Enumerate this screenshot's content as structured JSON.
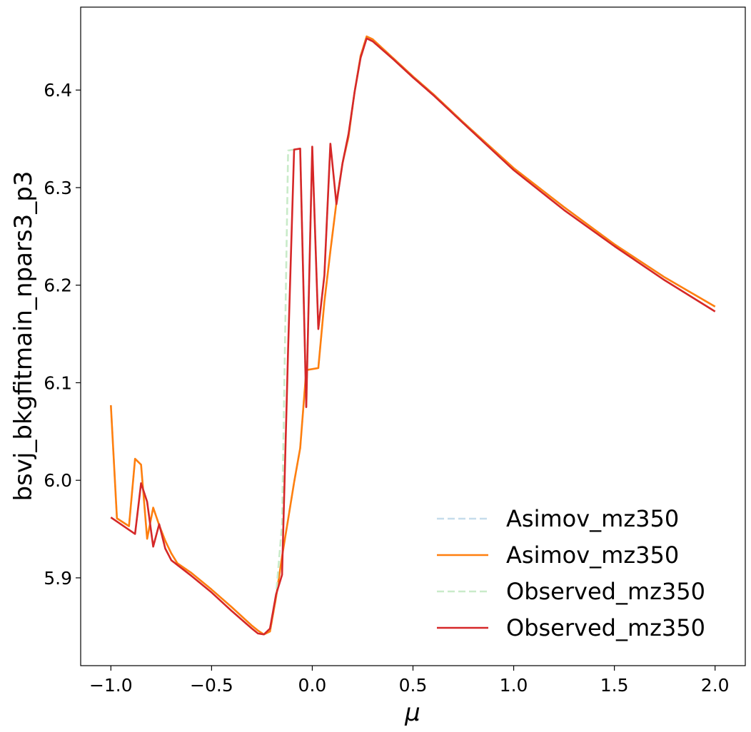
{
  "chart_data": {
    "type": "line",
    "xlabel": "μ",
    "ylabel": "bsvj_bkgfitmain_npars3_p3",
    "xlim": [
      -1.15,
      2.15
    ],
    "ylim": [
      5.81,
      6.485
    ],
    "xticks": [
      -1.0,
      -0.5,
      0.0,
      0.5,
      1.0,
      1.5,
      2.0
    ],
    "xtick_labels": [
      "−1.0",
      "−0.5",
      "0.0",
      "0.5",
      "1.0",
      "1.5",
      "2.0"
    ],
    "yticks": [
      5.9,
      6.0,
      6.1,
      6.2,
      6.3,
      6.4
    ],
    "ytick_labels": [
      "5.9",
      "6.0",
      "6.1",
      "6.2",
      "6.3",
      "6.4"
    ],
    "grid": false,
    "legend_position": "lower-right",
    "series": [
      {
        "name": "Asimov_mz350",
        "color": "#c6dcec",
        "dashed": true,
        "x": [
          -1.0,
          -0.97,
          -0.94,
          -0.91,
          -0.88,
          -0.85,
          -0.82,
          -0.79,
          -0.76,
          -0.73,
          -0.7,
          -0.67,
          -0.6,
          -0.5,
          -0.4,
          -0.3,
          -0.27,
          -0.24,
          -0.21,
          -0.18,
          -0.15,
          -0.12,
          -0.09,
          -0.06,
          -0.03,
          0.0,
          0.03,
          0.06,
          0.09,
          0.12,
          0.15,
          0.18,
          0.21,
          0.24,
          0.27,
          0.3,
          0.4,
          0.5,
          0.6,
          0.75,
          1.0,
          1.25,
          1.5,
          1.75,
          2.0
        ],
        "y": [
          6.077,
          5.961,
          5.957,
          5.953,
          6.022,
          6.016,
          5.94,
          5.972,
          5.954,
          5.938,
          5.925,
          5.915,
          5.905,
          5.888,
          5.87,
          5.851,
          5.846,
          5.842,
          5.845,
          5.88,
          5.922,
          5.96,
          5.998,
          6.033,
          6.113,
          6.114,
          6.115,
          6.183,
          6.235,
          6.285,
          6.325,
          6.352,
          6.398,
          6.435,
          6.455,
          6.452,
          6.433,
          6.414,
          6.396,
          6.367,
          6.32,
          6.28,
          6.242,
          6.208,
          6.178
        ]
      },
      {
        "name": "Asimov_mz350",
        "color": "#ff7f0e",
        "dashed": false,
        "x": [
          -1.0,
          -0.97,
          -0.94,
          -0.91,
          -0.88,
          -0.85,
          -0.82,
          -0.79,
          -0.76,
          -0.73,
          -0.7,
          -0.67,
          -0.6,
          -0.5,
          -0.4,
          -0.3,
          -0.27,
          -0.24,
          -0.21,
          -0.18,
          -0.15,
          -0.12,
          -0.09,
          -0.06,
          -0.03,
          0.0,
          0.03,
          0.06,
          0.09,
          0.12,
          0.15,
          0.18,
          0.21,
          0.24,
          0.27,
          0.3,
          0.4,
          0.5,
          0.6,
          0.75,
          1.0,
          1.25,
          1.5,
          1.75,
          2.0
        ],
        "y": [
          6.077,
          5.961,
          5.957,
          5.953,
          6.022,
          6.016,
          5.94,
          5.972,
          5.954,
          5.938,
          5.925,
          5.915,
          5.905,
          5.888,
          5.87,
          5.851,
          5.846,
          5.842,
          5.845,
          5.88,
          5.922,
          5.96,
          5.998,
          6.033,
          6.113,
          6.114,
          6.115,
          6.183,
          6.235,
          6.285,
          6.325,
          6.352,
          6.398,
          6.435,
          6.455,
          6.452,
          6.433,
          6.414,
          6.396,
          6.367,
          6.32,
          6.28,
          6.242,
          6.208,
          6.178
        ]
      },
      {
        "name": "Observed_mz350",
        "color": "#c9ebc9",
        "dashed": true,
        "x": [
          -1.0,
          -0.88,
          -0.85,
          -0.82,
          -0.79,
          -0.76,
          -0.73,
          -0.7,
          -0.6,
          -0.5,
          -0.4,
          -0.3,
          -0.27,
          -0.24,
          -0.21,
          -0.18,
          -0.15,
          -0.12,
          -0.09,
          -0.06,
          -0.03,
          0.0,
          0.03,
          0.06,
          0.09,
          0.12,
          0.15,
          0.18,
          0.21,
          0.24,
          0.27,
          0.3,
          0.4,
          0.5,
          0.6,
          0.75,
          1.0,
          1.25,
          1.5,
          1.75,
          2.0
        ],
        "y": [
          5.962,
          5.945,
          5.997,
          5.978,
          5.932,
          5.955,
          5.93,
          5.918,
          5.902,
          5.885,
          5.866,
          5.848,
          5.843,
          5.842,
          5.848,
          5.883,
          5.955,
          6.338,
          6.339,
          6.34,
          6.075,
          6.342,
          6.155,
          6.21,
          6.345,
          6.283,
          6.325,
          6.355,
          6.398,
          6.433,
          6.453,
          6.45,
          6.432,
          6.413,
          6.395,
          6.366,
          6.318,
          6.277,
          6.24,
          6.205,
          6.173
        ]
      },
      {
        "name": "Observed_mz350",
        "color": "#d62728",
        "dashed": false,
        "x": [
          -1.0,
          -0.88,
          -0.85,
          -0.82,
          -0.79,
          -0.76,
          -0.73,
          -0.7,
          -0.6,
          -0.5,
          -0.4,
          -0.3,
          -0.27,
          -0.24,
          -0.21,
          -0.18,
          -0.15,
          -0.12,
          -0.09,
          -0.06,
          -0.03,
          0.0,
          0.03,
          0.06,
          0.09,
          0.12,
          0.15,
          0.18,
          0.21,
          0.24,
          0.27,
          0.3,
          0.4,
          0.5,
          0.6,
          0.75,
          1.0,
          1.25,
          1.5,
          1.75,
          2.0
        ],
        "y": [
          5.962,
          5.945,
          5.997,
          5.978,
          5.932,
          5.955,
          5.93,
          5.918,
          5.902,
          5.885,
          5.866,
          5.848,
          5.843,
          5.842,
          5.848,
          5.883,
          5.903,
          6.135,
          6.339,
          6.34,
          6.075,
          6.342,
          6.155,
          6.21,
          6.345,
          6.283,
          6.325,
          6.355,
          6.398,
          6.433,
          6.453,
          6.45,
          6.432,
          6.413,
          6.395,
          6.366,
          6.318,
          6.277,
          6.24,
          6.205,
          6.173
        ]
      }
    ]
  }
}
